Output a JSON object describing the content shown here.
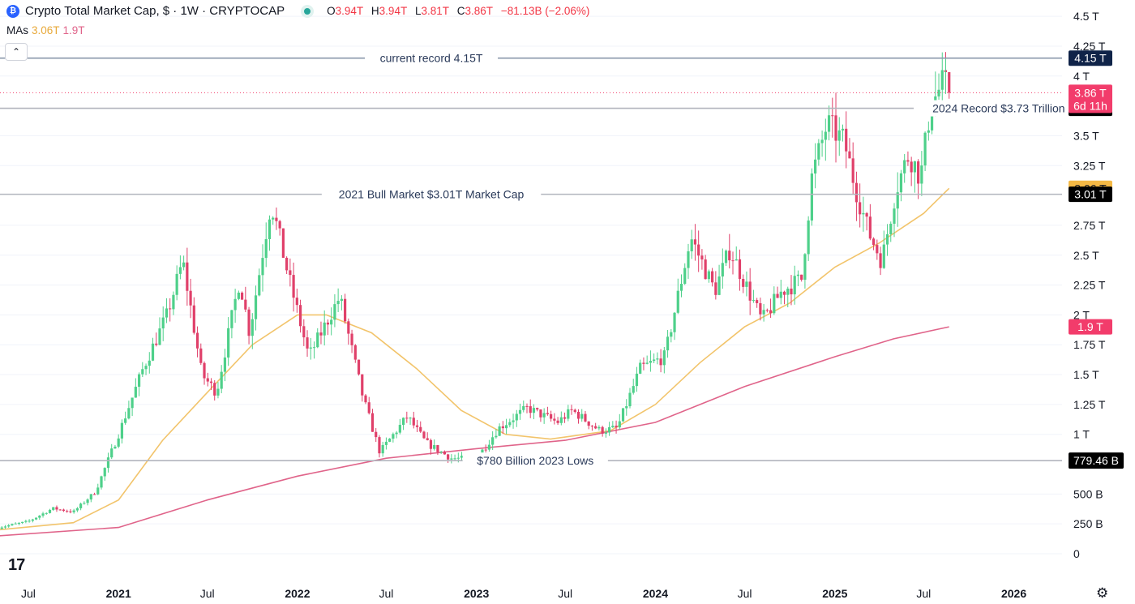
{
  "header": {
    "logo_glyph": "₿",
    "title": "Crypto Total Market Cap, $ · 1W · CRYPTOCAP",
    "ohlc": [
      {
        "k": "O",
        "v": "3.94T"
      },
      {
        "k": "H",
        "v": "3.94T"
      },
      {
        "k": "L",
        "v": "3.81T"
      },
      {
        "k": "C",
        "v": "3.86T"
      }
    ],
    "change": "−81.13B (−2.06%)",
    "ma_label": "MAs",
    "ma1_value": "3.06T",
    "ma2_value": "1.9T",
    "collapse_glyph": "⌃"
  },
  "branding": {
    "logo_text": "17",
    "settings_glyph": "⚙"
  },
  "colors": {
    "up": "#4ed08a",
    "down": "#e0406a",
    "ma_fast": "#f2c46b",
    "ma_slow": "#e0648a",
    "line": "#b2b5be",
    "text": "#131722",
    "navy": "#0f2348",
    "price_label": "#f23c6b"
  },
  "chart_data": {
    "type": "candlestick",
    "title": "Crypto Total Market Cap, $ · 1W · CRYPTOCAP",
    "timeframe": "1W",
    "y_ticks": [
      {
        "v": 0,
        "label": "0"
      },
      {
        "v": 0.25,
        "label": "250 B"
      },
      {
        "v": 0.5,
        "label": "500 B"
      },
      {
        "v": 1,
        "label": "1 T"
      },
      {
        "v": 1.25,
        "label": "1.25 T"
      },
      {
        "v": 1.5,
        "label": "1.5 T"
      },
      {
        "v": 1.75,
        "label": "1.75 T"
      },
      {
        "v": 2,
        "label": "2 T"
      },
      {
        "v": 2.25,
        "label": "2.25 T"
      },
      {
        "v": 2.5,
        "label": "2.5 T"
      },
      {
        "v": 2.75,
        "label": "2.75 T"
      },
      {
        "v": 3.25,
        "label": "3.25 T"
      },
      {
        "v": 3.5,
        "label": "3.5 T"
      },
      {
        "v": 4,
        "label": "4 T"
      },
      {
        "v": 4.25,
        "label": "4.25 T"
      },
      {
        "v": 4.5,
        "label": "4.5 T"
      }
    ],
    "x_ticks": [
      {
        "date": "2020-07-01",
        "label": "Jul",
        "bold": false
      },
      {
        "date": "2021-01-01",
        "label": "2021",
        "bold": true
      },
      {
        "date": "2021-07-01",
        "label": "Jul",
        "bold": false
      },
      {
        "date": "2022-01-01",
        "label": "2022",
        "bold": true
      },
      {
        "date": "2022-07-01",
        "label": "Jul",
        "bold": false
      },
      {
        "date": "2023-01-01",
        "label": "2023",
        "bold": true
      },
      {
        "date": "2023-07-01",
        "label": "Jul",
        "bold": false
      },
      {
        "date": "2024-01-01",
        "label": "2024",
        "bold": true
      },
      {
        "date": "2024-07-01",
        "label": "Jul",
        "bold": false
      },
      {
        "date": "2025-01-01",
        "label": "2025",
        "bold": true
      },
      {
        "date": "2025-07-01",
        "label": "Jul",
        "bold": false
      },
      {
        "date": "2026-01-01",
        "label": "2026",
        "bold": true
      }
    ],
    "horizontal_lines": [
      {
        "value": 4.15,
        "text": "current record 4.15T",
        "text_date": "2022-10-01",
        "label": "4.15 T"
      },
      {
        "value": 3.73,
        "text": "2024 Record $3.73 Trillion",
        "text_date": "2025-12-01",
        "label": "3.73 T"
      },
      {
        "value": 3.01,
        "text": "2021 Bull Market $3.01T Market Cap",
        "text_date": "2022-10-01",
        "label": "3.01 T"
      },
      {
        "value": 0.7795,
        "text": "$780 Billion 2023 Lows",
        "text_date": "2023-05-01",
        "label": "779.46 B"
      }
    ],
    "price_label": {
      "value": 3.86,
      "text": "3.86 T",
      "countdown": "6d 11h"
    },
    "ma_labels": [
      {
        "name": "MA",
        "value": 3.06,
        "text": "3.06 T"
      },
      {
        "name": "MA",
        "value": 1.9,
        "text": "1.9 T"
      }
    ],
    "closes": [
      {
        "date": "2020-05-01",
        "value": 0.22
      },
      {
        "date": "2020-07-01",
        "value": 0.27
      },
      {
        "date": "2020-08-20",
        "value": 0.38
      },
      {
        "date": "2020-10-01",
        "value": 0.35
      },
      {
        "date": "2020-11-15",
        "value": 0.52
      },
      {
        "date": "2021-01-01",
        "value": 1.0
      },
      {
        "date": "2021-02-20",
        "value": 1.55
      },
      {
        "date": "2021-04-10",
        "value": 2.0
      },
      {
        "date": "2021-05-12",
        "value": 2.45
      },
      {
        "date": "2021-06-20",
        "value": 1.5
      },
      {
        "date": "2021-07-20",
        "value": 1.35
      },
      {
        "date": "2021-09-05",
        "value": 2.3
      },
      {
        "date": "2021-09-25",
        "value": 1.85
      },
      {
        "date": "2021-11-08",
        "value": 2.95
      },
      {
        "date": "2021-12-15",
        "value": 2.3
      },
      {
        "date": "2022-01-24",
        "value": 1.65
      },
      {
        "date": "2022-03-28",
        "value": 2.15
      },
      {
        "date": "2022-05-15",
        "value": 1.3
      },
      {
        "date": "2022-06-18",
        "value": 0.85
      },
      {
        "date": "2022-08-13",
        "value": 1.15
      },
      {
        "date": "2022-09-20",
        "value": 0.93
      },
      {
        "date": "2022-11-10",
        "value": 0.8
      },
      {
        "date": "2022-12-31",
        "value": 0.79
      },
      {
        "date": "2023-02-15",
        "value": 1.05
      },
      {
        "date": "2023-04-15",
        "value": 1.22
      },
      {
        "date": "2023-06-15",
        "value": 1.1
      },
      {
        "date": "2023-07-15",
        "value": 1.2
      },
      {
        "date": "2023-09-10",
        "value": 1.03
      },
      {
        "date": "2023-10-15",
        "value": 1.05
      },
      {
        "date": "2023-12-01",
        "value": 1.55
      },
      {
        "date": "2024-01-20",
        "value": 1.65
      },
      {
        "date": "2024-03-13",
        "value": 2.65
      },
      {
        "date": "2024-05-01",
        "value": 2.2
      },
      {
        "date": "2024-06-01",
        "value": 2.55
      },
      {
        "date": "2024-08-05",
        "value": 1.95
      },
      {
        "date": "2024-09-15",
        "value": 2.2
      },
      {
        "date": "2024-10-25",
        "value": 2.3
      },
      {
        "date": "2024-11-15",
        "value": 3.15
      },
      {
        "date": "2024-12-16",
        "value": 3.6
      },
      {
        "date": "2025-01-20",
        "value": 3.45
      },
      {
        "date": "2025-02-10",
        "value": 3.1
      },
      {
        "date": "2025-03-10",
        "value": 2.7
      },
      {
        "date": "2025-04-07",
        "value": 2.45
      },
      {
        "date": "2025-05-05",
        "value": 3.05
      },
      {
        "date": "2025-06-01",
        "value": 3.35
      },
      {
        "date": "2025-06-25",
        "value": 3.15
      },
      {
        "date": "2025-07-15",
        "value": 3.75
      },
      {
        "date": "2025-08-10",
        "value": 3.95
      },
      {
        "date": "2025-08-22",
        "value": 3.86
      }
    ],
    "ma_fast": [
      {
        "date": "2020-05-01",
        "value": 0.2
      },
      {
        "date": "2020-10-01",
        "value": 0.26
      },
      {
        "date": "2021-01-01",
        "value": 0.45
      },
      {
        "date": "2021-04-01",
        "value": 0.95
      },
      {
        "date": "2021-07-01",
        "value": 1.35
      },
      {
        "date": "2021-10-01",
        "value": 1.75
      },
      {
        "date": "2022-01-01",
        "value": 2.0
      },
      {
        "date": "2022-03-01",
        "value": 2.0
      },
      {
        "date": "2022-06-01",
        "value": 1.85
      },
      {
        "date": "2022-09-01",
        "value": 1.55
      },
      {
        "date": "2022-12-01",
        "value": 1.2
      },
      {
        "date": "2023-03-01",
        "value": 1.0
      },
      {
        "date": "2023-06-01",
        "value": 0.96
      },
      {
        "date": "2023-10-01",
        "value": 1.03
      },
      {
        "date": "2024-01-01",
        "value": 1.25
      },
      {
        "date": "2024-04-01",
        "value": 1.6
      },
      {
        "date": "2024-07-01",
        "value": 1.9
      },
      {
        "date": "2024-10-01",
        "value": 2.1
      },
      {
        "date": "2025-01-01",
        "value": 2.4
      },
      {
        "date": "2025-04-01",
        "value": 2.6
      },
      {
        "date": "2025-07-01",
        "value": 2.85
      },
      {
        "date": "2025-08-22",
        "value": 3.06
      }
    ],
    "ma_slow": [
      {
        "date": "2020-05-01",
        "value": 0.15
      },
      {
        "date": "2021-01-01",
        "value": 0.22
      },
      {
        "date": "2021-07-01",
        "value": 0.45
      },
      {
        "date": "2022-01-01",
        "value": 0.65
      },
      {
        "date": "2022-07-01",
        "value": 0.8
      },
      {
        "date": "2023-01-01",
        "value": 0.88
      },
      {
        "date": "2023-07-01",
        "value": 0.95
      },
      {
        "date": "2024-01-01",
        "value": 1.1
      },
      {
        "date": "2024-07-01",
        "value": 1.4
      },
      {
        "date": "2025-01-01",
        "value": 1.65
      },
      {
        "date": "2025-05-01",
        "value": 1.8
      },
      {
        "date": "2025-08-22",
        "value": 1.9
      }
    ],
    "x_range": [
      "2020-05-01",
      "2026-04-01"
    ],
    "grid": true,
    "legend": "top-left"
  }
}
